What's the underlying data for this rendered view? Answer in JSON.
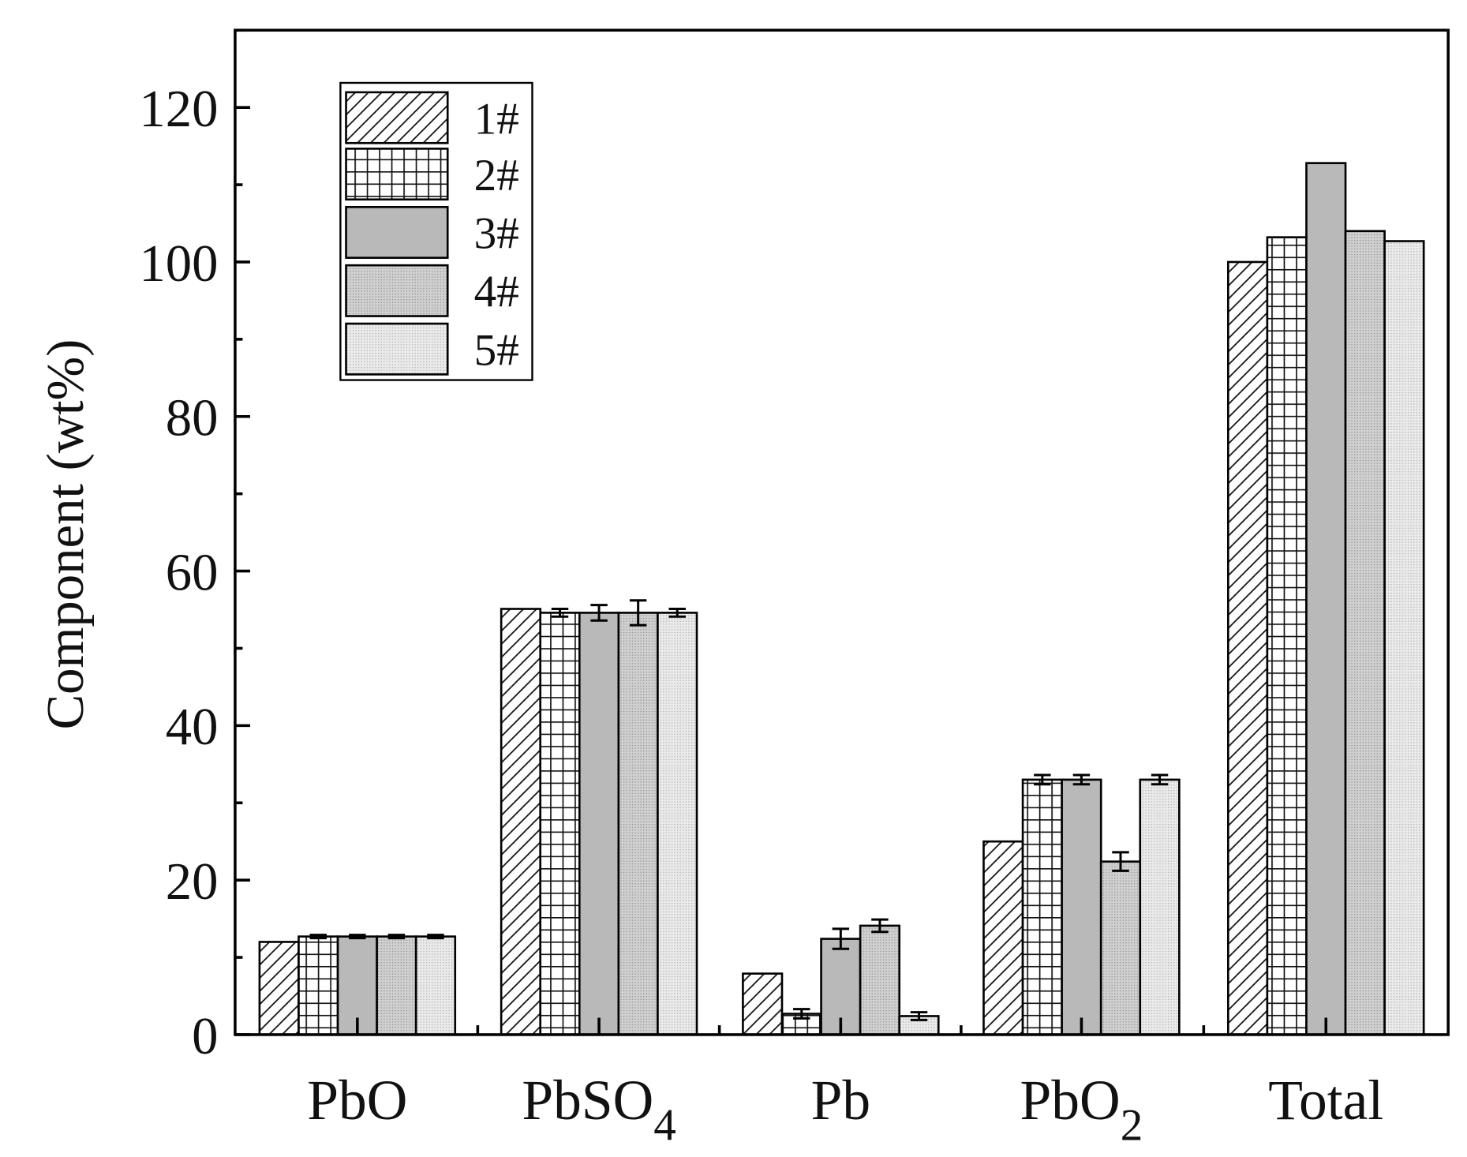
{
  "chart_data": {
    "type": "bar",
    "title": "",
    "xlabel": "",
    "ylabel": "Component (wt%)",
    "ylim": [
      0,
      130
    ],
    "yticks": [
      0,
      20,
      40,
      60,
      80,
      100,
      120
    ],
    "grid": false,
    "legend_placement": "top-left",
    "categories": [
      "PbO",
      "PbSO4",
      "Pb",
      "PbO2",
      "Total"
    ],
    "series": [
      {
        "name": "1#",
        "pattern": "diagonal-hatch",
        "values": [
          12.0,
          55.1,
          7.9,
          25.0,
          100.0
        ],
        "errors": [
          0,
          0,
          0,
          0,
          0
        ]
      },
      {
        "name": "2#",
        "pattern": "grid",
        "values": [
          12.7,
          54.6,
          2.7,
          33.0,
          103.2
        ],
        "errors": [
          0.2,
          0.5,
          0.6,
          0.6,
          0
        ]
      },
      {
        "name": "3#",
        "pattern": "solid-gray",
        "values": [
          12.7,
          54.6,
          12.4,
          33.0,
          112.8
        ],
        "errors": [
          0.2,
          1.0,
          1.3,
          0.6,
          0
        ]
      },
      {
        "name": "4#",
        "pattern": "dotted-gray",
        "values": [
          12.7,
          54.6,
          14.1,
          22.4,
          104.0
        ],
        "errors": [
          0.2,
          1.6,
          0.8,
          1.2,
          0
        ]
      },
      {
        "name": "5#",
        "pattern": "light-dotted",
        "values": [
          12.7,
          54.6,
          2.4,
          33.0,
          102.7
        ],
        "errors": [
          0.2,
          0.5,
          0.5,
          0.6,
          0
        ]
      }
    ],
    "colors": {
      "axis": "#000000",
      "solid_gray": "#b9b9b9",
      "dotted_gray": "#c9c9c9",
      "light_dotted": "#e2e2e2"
    }
  }
}
